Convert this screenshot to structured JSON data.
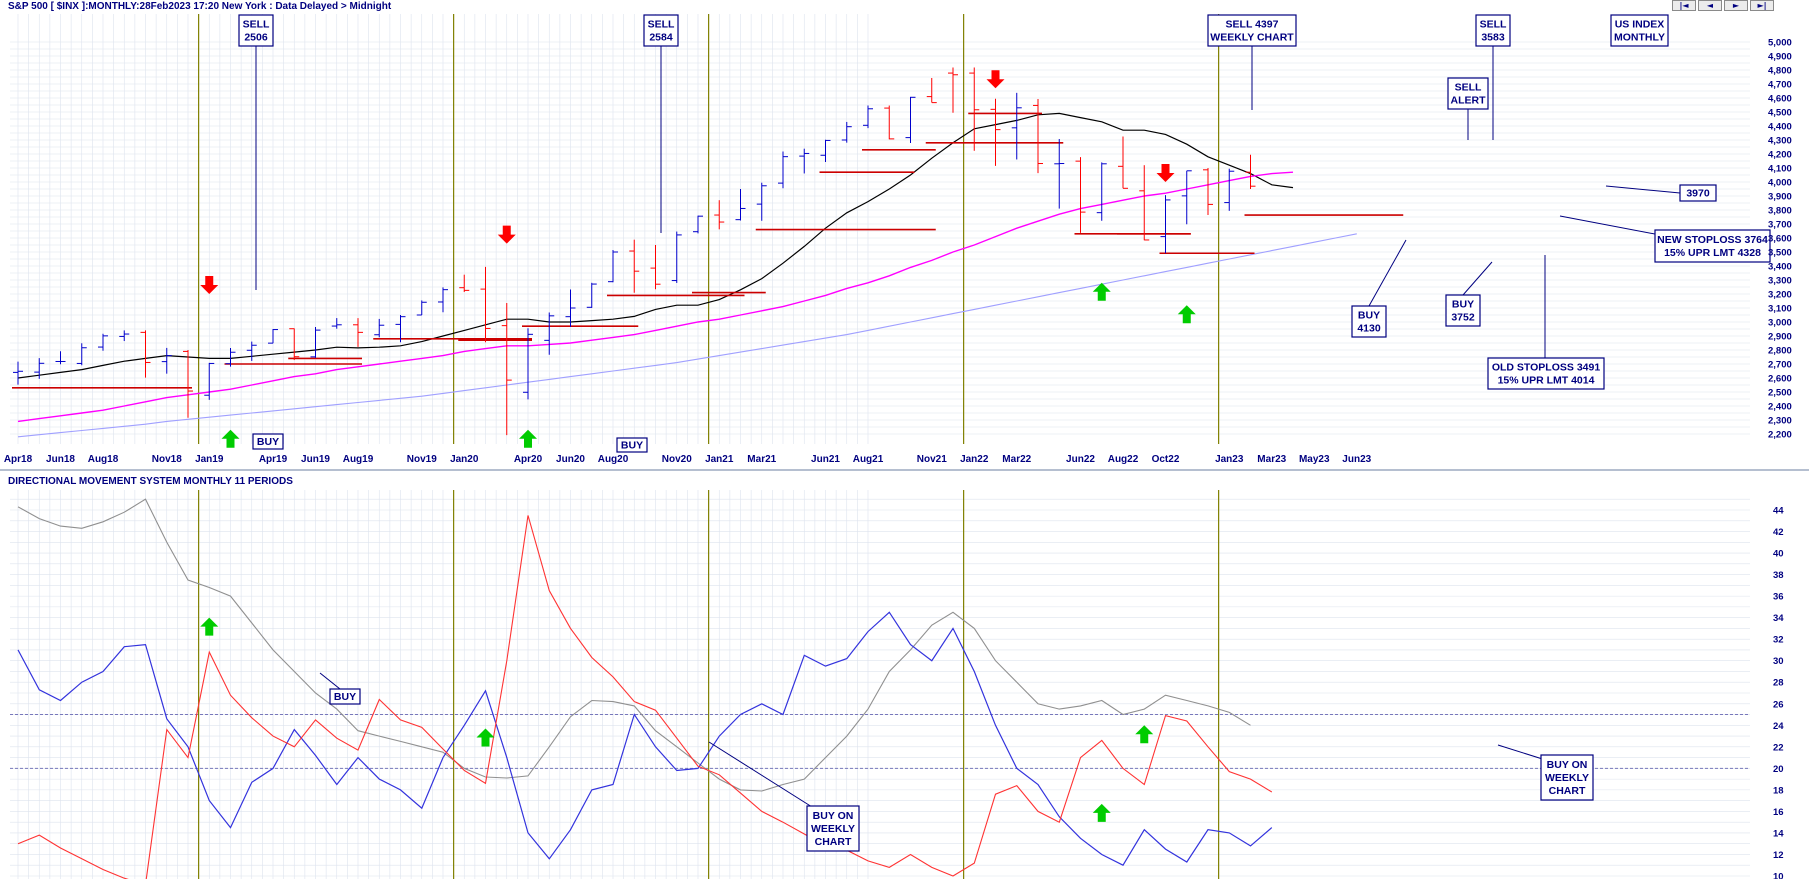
{
  "header": {
    "title": "S&P 500 [ $INX ]:MONTHLY:28Feb2023 17:20 New York : Data Delayed > Midnight",
    "nav_buttons": [
      "|◄",
      "◄",
      "►",
      "►|"
    ]
  },
  "colors": {
    "up_bar": "#0000cc",
    "down_bar": "#ff0000",
    "ma_short": "#000000",
    "ma_medium": "#ff00ff",
    "ma_long": "#a0a0ff",
    "stoploss": "#cc0000",
    "grid": "#dde3ee",
    "year_divider": "#808000",
    "arrow_up": "#00cc00",
    "arrow_down": "#ff0000",
    "text": "#000080",
    "dmi_plus": "#3333dd",
    "dmi_minus": "#ff3333",
    "adx": "#909090"
  },
  "chart_data": [
    {
      "type": "line",
      "name": "price-panel",
      "title": "S&P 500 [ $INX ]:MONTHLY:28Feb2023 17:20 New York : Data Delayed > Midnight",
      "x_tick_labels": [
        "Apr18",
        "Jun18",
        "Aug18",
        "Nov18",
        "Jan19",
        "Apr19",
        "Jun19",
        "Aug19",
        "Nov19",
        "Jan20",
        "Apr20",
        "Jun20",
        "Aug20",
        "Nov20",
        "Jan21",
        "Mar21",
        "Jun21",
        "Aug21",
        "Nov21",
        "Jan22",
        "Mar22",
        "Jun22",
        "Aug22",
        "Oct22",
        "Jan23",
        "Mar23",
        "May23",
        "Jun23"
      ],
      "x_tick_index": [
        0,
        2,
        4,
        7,
        9,
        12,
        14,
        16,
        19,
        21,
        24,
        26,
        28,
        31,
        33,
        35,
        38,
        40,
        43,
        45,
        47,
        50,
        52,
        54,
        57,
        59,
        61,
        63
      ],
      "ylim": [
        2150,
        5050
      ],
      "y_ticks": [
        2200,
        2300,
        2400,
        2500,
        2600,
        2700,
        2800,
        2900,
        3000,
        3100,
        3200,
        3300,
        3400,
        3500,
        3600,
        3700,
        3800,
        3900,
        4000,
        4100,
        4200,
        4300,
        4400,
        4500,
        4600,
        4700,
        4800,
        4900,
        5000
      ],
      "y_tick_labels": [
        "2,200",
        "2,300",
        "2,400",
        "2,500",
        "2,600",
        "2,700",
        "2,800",
        "2,900",
        "3,000",
        "3,100",
        "3,200",
        "3,300",
        "3,400",
        "3,500",
        "3,600",
        "3,700",
        "3,800",
        "3,900",
        "4,000",
        "4,100",
        "4,200",
        "4,300",
        "4,400",
        "4,500",
        "4,600",
        "4,700",
        "4,800",
        "4,900",
        "5,000"
      ],
      "year_dividers": [
        8.5,
        20.5,
        32.5,
        44.5,
        56.5
      ],
      "ohlc": [
        [
          2640,
          2717,
          2553,
          2648
        ],
        [
          2642,
          2742,
          2594,
          2705
        ],
        [
          2718,
          2791,
          2698,
          2718
        ],
        [
          2704,
          2848,
          2691,
          2816
        ],
        [
          2821,
          2916,
          2795,
          2901
        ],
        [
          2897,
          2940,
          2864,
          2914
        ],
        [
          2926,
          2940,
          2603,
          2711
        ],
        [
          2717,
          2815,
          2631,
          2760
        ],
        [
          2790,
          2800,
          2316,
          2507
        ],
        [
          2477,
          2708,
          2444,
          2704
        ],
        [
          2702,
          2814,
          2681,
          2784
        ],
        [
          2798,
          2860,
          2722,
          2834
        ],
        [
          2849,
          2950,
          2848,
          2946
        ],
        [
          2952,
          2954,
          2728,
          2752
        ],
        [
          2751,
          2964,
          2744,
          2942
        ],
        [
          2971,
          3028,
          2952,
          2980
        ],
        [
          2980,
          3028,
          2822,
          2926
        ],
        [
          2909,
          3022,
          2891,
          2977
        ],
        [
          2983,
          3050,
          2855,
          3038
        ],
        [
          3050,
          3154,
          3050,
          3141
        ],
        [
          3143,
          3247,
          3070,
          3231
        ],
        [
          3245,
          3338,
          3214,
          3226
        ],
        [
          3235,
          3394,
          2855,
          2954
        ],
        [
          2974,
          3136,
          2192,
          2585
        ],
        [
          2498,
          2955,
          2447,
          2912
        ],
        [
          2869,
          3068,
          2766,
          3044
        ],
        [
          3038,
          3232,
          2965,
          3100
        ],
        [
          3105,
          3280,
          3101,
          3271
        ],
        [
          3288,
          3514,
          3284,
          3500
        ],
        [
          3507,
          3588,
          3209,
          3363
        ],
        [
          3385,
          3550,
          3234,
          3270
        ],
        [
          3296,
          3646,
          3279,
          3622
        ],
        [
          3645,
          3760,
          3633,
          3756
        ],
        [
          3764,
          3870,
          3662,
          3714
        ],
        [
          3731,
          3950,
          3725,
          3811
        ],
        [
          3842,
          3995,
          3723,
          3973
        ],
        [
          3992,
          4218,
          3955,
          4181
        ],
        [
          4185,
          4238,
          4061,
          4204
        ],
        [
          4191,
          4302,
          4143,
          4297
        ],
        [
          4300,
          4429,
          4281,
          4395
        ],
        [
          4405,
          4546,
          4385,
          4523
        ],
        [
          4528,
          4546,
          4305,
          4308
        ],
        [
          4317,
          4608,
          4279,
          4605
        ],
        [
          4610,
          4743,
          4568,
          4567
        ],
        [
          4778,
          4818,
          4495,
          4766
        ],
        [
          4778,
          4818,
          4223,
          4516
        ],
        [
          4519,
          4595,
          4115,
          4374
        ],
        [
          4387,
          4637,
          4161,
          4530
        ],
        [
          4547,
          4593,
          4063,
          4132
        ],
        [
          4130,
          4307,
          3810,
          4132
        ],
        [
          4149,
          4178,
          3637,
          3785
        ],
        [
          3781,
          4140,
          3723,
          4130
        ],
        [
          4112,
          4325,
          3955,
          3955
        ],
        [
          3937,
          4120,
          3584,
          3586
        ],
        [
          3610,
          3906,
          3491,
          3872
        ],
        [
          3901,
          4080,
          3698,
          4080
        ],
        [
          4087,
          4100,
          3764,
          3840
        ],
        [
          3853,
          4095,
          3794,
          4077
        ],
        [
          4070,
          4195,
          3950,
          3970
        ]
      ],
      "series": [
        {
          "key": "ma_short",
          "values": [
            2600,
            2620,
            2640,
            2660,
            2690,
            2720,
            2740,
            2760,
            2750,
            2740,
            2740,
            2755,
            2770,
            2785,
            2800,
            2820,
            2815,
            2820,
            2830,
            2860,
            2900,
            2940,
            2980,
            3020,
            3020,
            3000,
            3000,
            3010,
            3020,
            3040,
            3090,
            3120,
            3120,
            3160,
            3230,
            3310,
            3420,
            3540,
            3670,
            3780,
            3860,
            3950,
            4050,
            4170,
            4280,
            4380,
            4410,
            4440,
            4480,
            4490,
            4460,
            4430,
            4370,
            4370,
            4340,
            4270,
            4180,
            4120,
            4060,
            3980,
            3960
          ]
        },
        {
          "key": "ma_medium",
          "values": [
            2290,
            2310,
            2330,
            2350,
            2370,
            2400,
            2430,
            2460,
            2480,
            2500,
            2520,
            2550,
            2580,
            2610,
            2630,
            2660,
            2680,
            2700,
            2720,
            2740,
            2760,
            2790,
            2810,
            2830,
            2830,
            2840,
            2850,
            2870,
            2890,
            2910,
            2940,
            2970,
            3000,
            3020,
            3050,
            3080,
            3110,
            3150,
            3190,
            3240,
            3280,
            3330,
            3390,
            3440,
            3500,
            3550,
            3610,
            3670,
            3720,
            3770,
            3810,
            3840,
            3870,
            3900,
            3920,
            3950,
            3980,
            4010,
            4040,
            4060,
            4070
          ]
        },
        {
          "key": "ma_long",
          "values": [
            2180,
            2195,
            2210,
            2225,
            2240,
            2255,
            2270,
            2290,
            2305,
            2320,
            2335,
            2350,
            2365,
            2380,
            2395,
            2410,
            2425,
            2440,
            2455,
            2470,
            2490,
            2510,
            2530,
            2550,
            2570,
            2590,
            2610,
            2630,
            2650,
            2670,
            2690,
            2710,
            2735,
            2760,
            2785,
            2810,
            2835,
            2860,
            2885,
            2910,
            2940,
            2970,
            3000,
            3030,
            3060,
            3090,
            3120,
            3150,
            3180,
            3210,
            3240,
            3270,
            3300,
            3330,
            3360,
            3390,
            3420,
            3450,
            3480,
            3510,
            3540,
            3570,
            3600,
            3630
          ]
        }
      ],
      "stoploss_levels": [
        [
          0,
          8,
          2530
        ],
        [
          10,
          16,
          2700
        ],
        [
          13,
          16,
          2740
        ],
        [
          17,
          24,
          2880
        ],
        [
          21,
          24,
          2870
        ],
        [
          24,
          29,
          2970
        ],
        [
          28,
          34,
          3190
        ],
        [
          32,
          35,
          3210
        ],
        [
          35,
          43,
          3660
        ],
        [
          38,
          42,
          4070
        ],
        [
          40,
          43,
          4230
        ],
        [
          43,
          49,
          4280
        ],
        [
          45,
          48,
          4490
        ],
        [
          50,
          55,
          3630
        ],
        [
          52,
          55,
          3630
        ],
        [
          54,
          58,
          3491
        ],
        [
          58,
          65,
          3764
        ]
      ],
      "arrows": [
        {
          "dir": "down",
          "i": 9,
          "y": 3200
        },
        {
          "dir": "up",
          "i": 10,
          "y": 2230
        },
        {
          "dir": "down",
          "i": 23,
          "y": 3560
        },
        {
          "dir": "up",
          "i": 24,
          "y": 2230
        },
        {
          "dir": "down",
          "i": 46,
          "y": 4670
        },
        {
          "dir": "up",
          "i": 51,
          "y": 3280
        },
        {
          "dir": "down",
          "i": 54,
          "y": 4000
        },
        {
          "dir": "up",
          "i": 55,
          "y": 3120
        }
      ],
      "annotations": [
        {
          "lines": [
            "SELL",
            "2506"
          ],
          "tip_i": 9,
          "tip_y": 3260
        },
        {
          "lines": [
            "SELL",
            "2584"
          ],
          "tip_i": 23,
          "tip_y": 3640
        },
        {
          "lines": [
            "SELL 4397",
            "WEEKLY CHART"
          ],
          "tip_i": 0,
          "tip_y": 0
        },
        {
          "lines": [
            "SELL",
            "3583"
          ],
          "tip_i": 54,
          "tip_y": 4270
        },
        {
          "lines": [
            "SELL",
            "ALERT"
          ],
          "tip_i": 53,
          "tip_y": 4300
        },
        {
          "lines": [
            "US INDEX",
            "MONTHLY"
          ],
          "tip_i": 0,
          "tip_y": 0
        },
        {
          "lines": [
            "BUY"
          ],
          "tip_i": 0,
          "tip_y": 0
        },
        {
          "lines": [
            "BUY"
          ],
          "tip_i": 0,
          "tip_y": 0
        },
        {
          "lines": [
            "3970"
          ],
          "tip_i": 58,
          "tip_y": 3970
        },
        {
          "lines": [
            "NEW STOPLOSS 3764",
            "15% UPR LMT 4328"
          ],
          "tip_i": 58,
          "tip_y": 3764
        },
        {
          "lines": [
            "BUY",
            "4130"
          ],
          "tip_i": 51,
          "tip_y": 3620
        },
        {
          "lines": [
            "BUY",
            "3752"
          ],
          "tip_i": 54,
          "tip_y": 3440
        },
        {
          "lines": [
            "OLD STOPLOSS 3491",
            "15% UPR LMT 4014"
          ],
          "tip_i": 56,
          "tip_y": 3491
        }
      ]
    },
    {
      "type": "line",
      "name": "dms-panel",
      "title": "DIRECTIONAL MOVEMENT SYSTEM MONTHLY 11 PERIODS",
      "ylim": [
        9,
        46
      ],
      "y_ticks": [
        10,
        12,
        14,
        16,
        18,
        20,
        22,
        24,
        26,
        28,
        30,
        32,
        34,
        36,
        38,
        40,
        42,
        44
      ],
      "reference_lines": [
        25,
        20
      ],
      "series": [
        {
          "key": "adx",
          "values": [
            44.3,
            43.2,
            42.5,
            42.3,
            42.9,
            43.8,
            45,
            41,
            37.5,
            36.8,
            36,
            33.5,
            31,
            29,
            27,
            25.5,
            23.5,
            23,
            22.5,
            22,
            21.5,
            20,
            19.2,
            19.1,
            19.3,
            22,
            24.8,
            26.3,
            26.2,
            25.8,
            23.5,
            22,
            20.5,
            19,
            18,
            17.9,
            18.5,
            19,
            21,
            23,
            25.5,
            29,
            31,
            33.3,
            34.5,
            33,
            30,
            28,
            26,
            25.5,
            25.8,
            26.3,
            25,
            25.5,
            26.8,
            26.3,
            25.8,
            25.2,
            24
          ]
        },
        {
          "key": "dmi_plus",
          "values": [
            31,
            27.3,
            26.3,
            28,
            29,
            31.3,
            31.5,
            24.6,
            22,
            17,
            14.5,
            18.7,
            20,
            23.6,
            21.2,
            18.5,
            21,
            19,
            18,
            16.3,
            21,
            24,
            27.2,
            21,
            14,
            11.6,
            14.3,
            18,
            18.5,
            25,
            22,
            19.8,
            20,
            23,
            25,
            26,
            25,
            30.5,
            29.5,
            30.2,
            32.7,
            34.5,
            31.5,
            30,
            33,
            29,
            24,
            20,
            18.5,
            15.5,
            13.5,
            12,
            11,
            14.3,
            12.5,
            11.3,
            14.3,
            14,
            12.8,
            14.5
          ]
        },
        {
          "key": "dmi_minus",
          "values": [
            13,
            13.8,
            12.6,
            11.6,
            10.6,
            9.8,
            9.2,
            23.6,
            21,
            30.8,
            26.8,
            24.7,
            23,
            22,
            24.5,
            22.8,
            21.7,
            26.4,
            24.5,
            23.8,
            21.8,
            19.8,
            18.6,
            30,
            43.5,
            36.5,
            33,
            30.3,
            28.5,
            26.2,
            25.4,
            22.8,
            20.2,
            19.4,
            17.7,
            16,
            15,
            13.9,
            12.8,
            12.4,
            11.4,
            10.8,
            12,
            10.8,
            10,
            11.2,
            17.6,
            18.4,
            16,
            15,
            21,
            22.6,
            20,
            18.5,
            24.9,
            24.4,
            22,
            19.7,
            19,
            17.8
          ]
        }
      ],
      "arrows": [
        {
          "dir": "up",
          "i": 9,
          "y": 34
        },
        {
          "dir": "up",
          "i": 22,
          "y": 23.7
        },
        {
          "dir": "up",
          "i": 51,
          "y": 16.7
        },
        {
          "dir": "up",
          "i": 53,
          "y": 24
        }
      ],
      "annotations": [
        {
          "lines": [
            "BUY"
          ],
          "tip_i": 0,
          "tip_y": 0
        },
        {
          "lines": [
            "BUY ON",
            "WEEKLY",
            "CHART"
          ],
          "tip_i": 0,
          "tip_y": 0
        },
        {
          "lines": [
            "BUY ON",
            "WEEKLY",
            "CHART"
          ],
          "tip_i": 0,
          "tip_y": 0
        }
      ]
    }
  ]
}
